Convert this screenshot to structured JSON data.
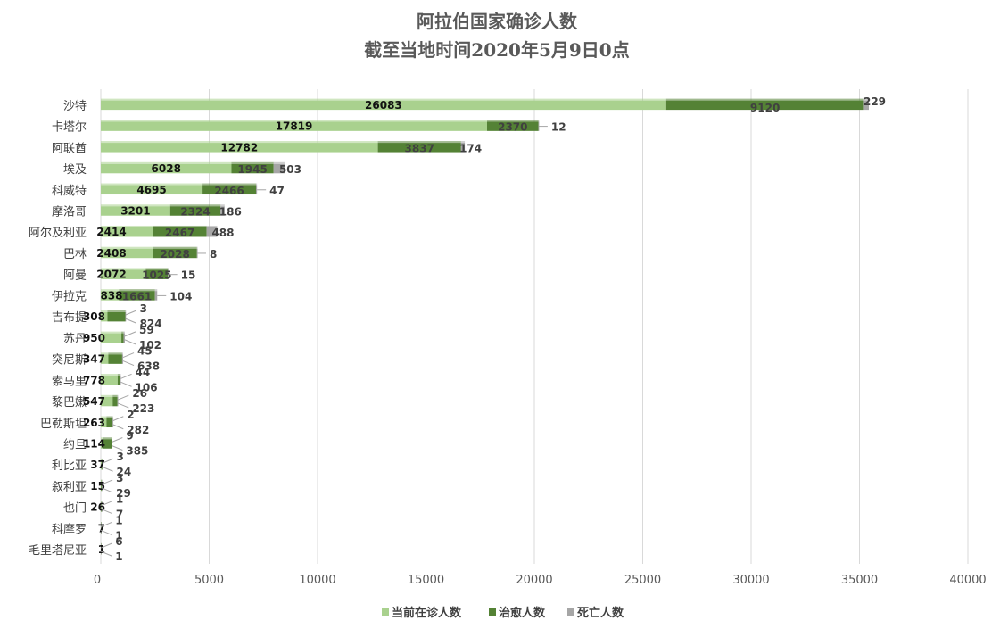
{
  "chart_data": {
    "type": "bar",
    "orientation": "horizontal",
    "stacked": true,
    "title": "阿拉伯国家确诊人数",
    "subtitle": "截至当地时间2020年5月9日0点",
    "categories": [
      "沙特",
      "卡塔尔",
      "阿联酋",
      "埃及",
      "科威特",
      "摩洛哥",
      "阿尔及利亚",
      "巴林",
      "阿曼",
      "伊拉克",
      "吉布提",
      "苏丹",
      "突尼斯",
      "索马里",
      "黎巴嫩",
      "巴勒斯坦",
      "约旦",
      "利比亚",
      "叙利亚",
      "也门",
      "科摩罗",
      "毛里塔尼亚"
    ],
    "series": [
      {
        "name": "当前在诊人数",
        "color": "#a9d18e",
        "values": [
          26083,
          17819,
          12782,
          6028,
          4695,
          3201,
          2414,
          2408,
          2072,
          838,
          308,
          950,
          347,
          778,
          547,
          263,
          114,
          37,
          15,
          26,
          7,
          1
        ]
      },
      {
        "name": "治愈人数",
        "color": "#548235",
        "values": [
          9120,
          2370,
          3837,
          1945,
          2466,
          2324,
          2467,
          2028,
          1025,
          1661,
          824,
          102,
          638,
          106,
          223,
          282,
          385,
          24,
          29,
          7,
          1,
          1
        ]
      },
      {
        "name": "死亡人数",
        "color": "#a6a6a6",
        "values": [
          229,
          12,
          174,
          503,
          47,
          186,
          488,
          8,
          15,
          104,
          3,
          59,
          45,
          44,
          26,
          2,
          9,
          3,
          3,
          1,
          1,
          6
        ]
      }
    ],
    "xlim": [
      0,
      40000
    ],
    "xticks": [
      0,
      5000,
      10000,
      15000,
      20000,
      25000,
      30000,
      35000,
      40000
    ],
    "grid": true,
    "legend_position": "bottom"
  }
}
